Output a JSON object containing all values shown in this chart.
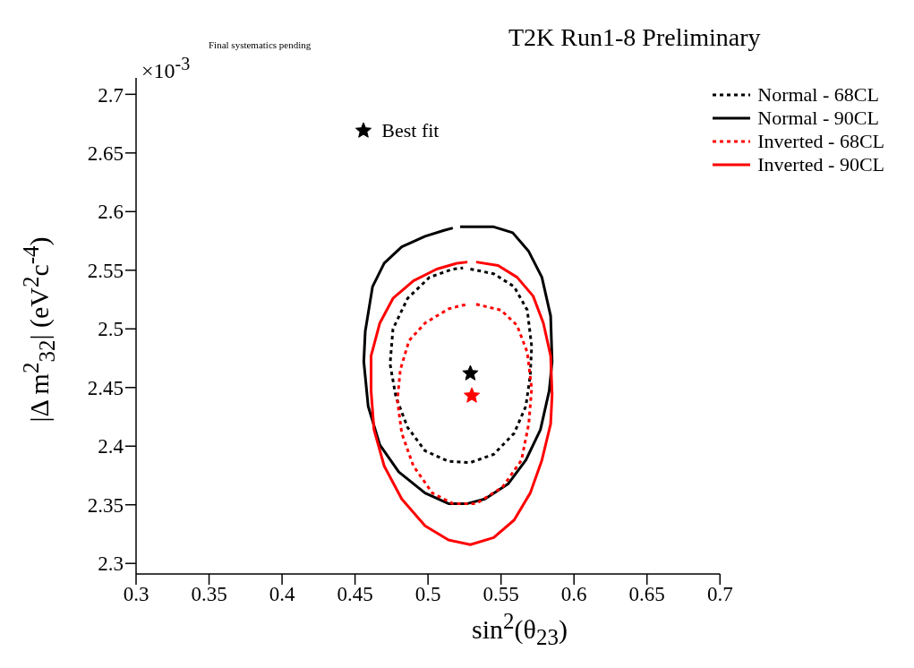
{
  "chart_data": {
    "type": "line",
    "title": "T2K Run1-8 Preliminary",
    "xlabel": "sin$^{2}$(θ$_{23}$)",
    "ylabel": "|Δ m$^{2}$$_{32}$| (eV$^{2}$c$^{-4}$)",
    "annotations": [
      "Final systematics pending",
      "×10$^{-3}$"
    ],
    "xlim": [
      0.3,
      0.7
    ],
    "xticks": [
      0.3,
      0.35,
      0.4,
      0.45,
      0.5,
      0.55,
      0.6,
      0.65,
      0.7
    ],
    "ylim": [
      2.291,
      2.714
    ],
    "yticks": [
      2.3,
      2.35,
      2.4,
      2.45,
      2.5,
      2.55,
      2.6,
      2.65,
      2.7
    ],
    "grid": false,
    "legend": "top right",
    "series": [
      {
        "name": "Normal - 68CL",
        "color": "#000000",
        "line_style": "dotted",
        "marker": "none",
        "x": [
          0.529,
          0.545,
          0.559,
          0.568,
          0.571,
          0.57,
          0.567,
          0.559,
          0.545,
          0.529,
          0.514,
          0.498,
          0.486,
          0.478,
          0.474,
          0.476,
          0.486,
          0.501,
          0.517,
          0.524
        ],
        "values": [
          2.551,
          2.547,
          2.536,
          2.516,
          2.485,
          2.46,
          2.434,
          2.411,
          2.393,
          2.386,
          2.387,
          2.396,
          2.416,
          2.442,
          2.47,
          2.5,
          2.526,
          2.544,
          2.551,
          2.552
        ]
      },
      {
        "name": "Normal - 90CL",
        "color": "#000000",
        "line_style": "solid",
        "marker": "none",
        "x": [
          0.522,
          0.545,
          0.558,
          0.569,
          0.578,
          0.584,
          0.585,
          0.583,
          0.577,
          0.567,
          0.555,
          0.539,
          0.527,
          0.514,
          0.498,
          0.48,
          0.467,
          0.459,
          0.456,
          0.457,
          0.462,
          0.47,
          0.482,
          0.498,
          0.511,
          0.517
        ],
        "values": [
          2.587,
          2.587,
          2.582,
          2.566,
          2.544,
          2.511,
          2.472,
          2.447,
          2.414,
          2.388,
          2.368,
          2.355,
          2.351,
          2.351,
          2.36,
          2.378,
          2.401,
          2.434,
          2.472,
          2.498,
          2.536,
          2.556,
          2.57,
          2.579,
          2.584,
          2.586
        ]
      },
      {
        "name": "Inverted - 68CL",
        "color": "#ff0000",
        "line_style": "dotted",
        "marker": "none",
        "x": [
          0.533,
          0.55,
          0.561,
          0.568,
          0.571,
          0.569,
          0.564,
          0.551,
          0.533,
          0.517,
          0.503,
          0.49,
          0.482,
          0.479,
          0.481,
          0.487,
          0.498,
          0.514,
          0.523,
          0.528
        ],
        "values": [
          2.521,
          2.516,
          2.503,
          2.48,
          2.449,
          2.419,
          2.388,
          2.365,
          2.351,
          2.351,
          2.36,
          2.383,
          2.411,
          2.439,
          2.465,
          2.49,
          2.505,
          2.517,
          2.52,
          2.521
        ]
      },
      {
        "name": "Inverted - 90CL",
        "color": "#ff0000",
        "line_style": "solid",
        "marker": "none",
        "x": [
          0.533,
          0.548,
          0.561,
          0.572,
          0.579,
          0.584,
          0.585,
          0.584,
          0.578,
          0.57,
          0.559,
          0.545,
          0.529,
          0.514,
          0.498,
          0.482,
          0.47,
          0.463,
          0.461,
          0.461,
          0.467,
          0.476,
          0.49,
          0.506,
          0.52,
          0.527
        ],
        "values": [
          2.557,
          2.554,
          2.544,
          2.528,
          2.505,
          2.477,
          2.444,
          2.419,
          2.388,
          2.36,
          2.337,
          2.322,
          2.316,
          2.32,
          2.332,
          2.355,
          2.383,
          2.414,
          2.447,
          2.477,
          2.505,
          2.526,
          2.541,
          2.551,
          2.556,
          2.557
        ]
      },
      {
        "name": "Best fit",
        "type": "scatter",
        "color": "#000000",
        "marker": "star",
        "x": [
          0.529
        ],
        "values": [
          2.462
        ]
      },
      {
        "type": "scatter",
        "color": "#ff0000",
        "marker": "star",
        "x": [
          0.53
        ],
        "values": [
          2.443
        ]
      }
    ]
  }
}
